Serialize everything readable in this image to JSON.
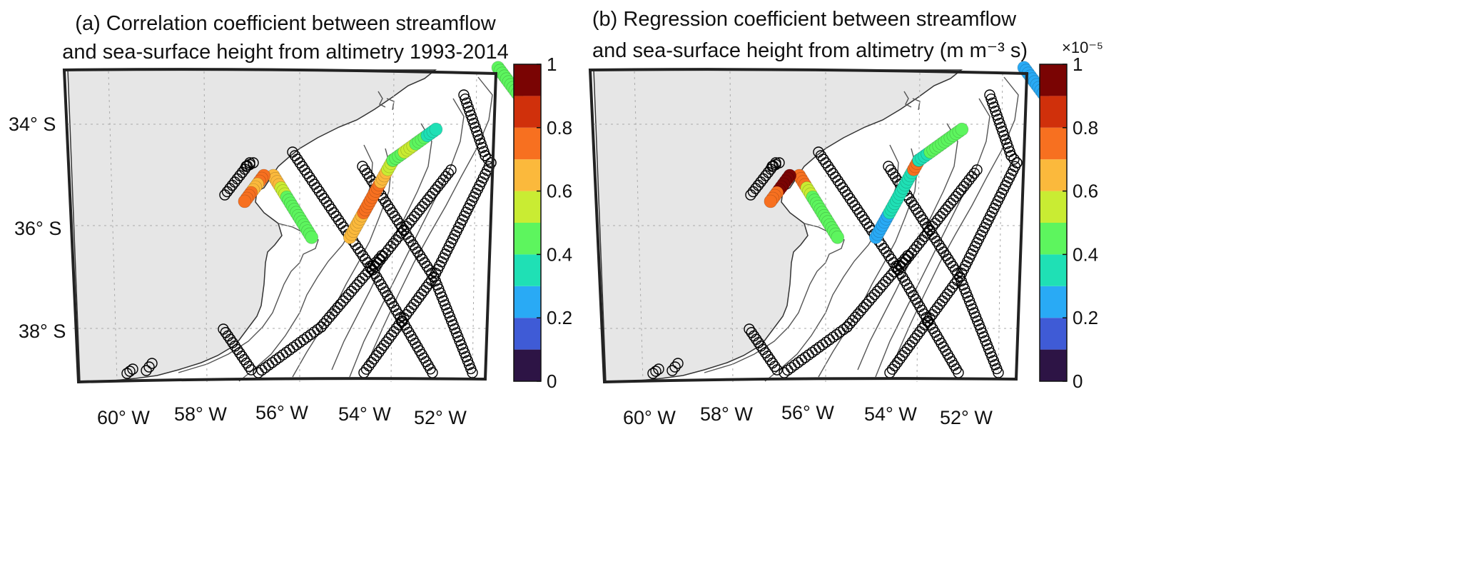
{
  "panels": [
    {
      "title_line1": "(a) Correlation coefficient between streamflow",
      "title_line2": "and sea-surface height from altimetry 1993-2014",
      "colorbar_ticks": [
        "0",
        "0.2",
        "0.4",
        "0.6",
        "0.8",
        "1"
      ],
      "colorbar_exponent": "",
      "lat_labels": [
        "34° S",
        "36° S",
        "38° S"
      ],
      "lon_labels": [
        "60° W",
        "58° W",
        "56° W",
        "54° W",
        "52° W"
      ]
    },
    {
      "title_line1": "(b) Regression coefficient between streamflow",
      "title_line2": "and sea-surface height from altimetry (m m⁻³ s)",
      "colorbar_ticks": [
        "0",
        "0.2",
        "0.4",
        "0.6",
        "0.8",
        "1"
      ],
      "colorbar_exponent": "×10⁻⁵",
      "lat_labels": [],
      "lon_labels": [
        "60° W",
        "58° W",
        "56° W",
        "54° W",
        "52° W"
      ]
    }
  ],
  "colormap": [
    "#2d1445",
    "#3f5bd6",
    "#29aaf5",
    "#1fe0b5",
    "#5df55e",
    "#c9ec33",
    "#fbb93c",
    "#f77020",
    "#d0300b",
    "#7a0403"
  ],
  "chart_data": [
    {
      "type": "map-scatter",
      "title": "(a) Correlation coefficient between streamflow and sea-surface height from altimetry 1993-2014",
      "lon_range": [
        -61,
        -51
      ],
      "lat_range": [
        -39,
        -33
      ],
      "clim": [
        0,
        1
      ],
      "tracks": [
        {
          "name": "track-56.8-diag",
          "lonlat": [
            [
              -56.7,
              -35.0
            ],
            [
              -55.9,
              -36.2
            ]
          ],
          "values": [
            0.62,
            0.52,
            0.48,
            0.45,
            0.45,
            0.44
          ]
        },
        {
          "name": "track-57.2-coast",
          "lonlat": [
            [
              -56.9,
              -35.0
            ],
            [
              -57.3,
              -35.5
            ]
          ],
          "values": [
            0.7,
            0.68,
            0.72
          ]
        },
        {
          "name": "track-54.4",
          "lonlat": [
            [
              -55.1,
              -36.2
            ],
            [
              -54.2,
              -34.7
            ]
          ],
          "values": [
            0.65,
            0.68,
            0.7,
            0.74,
            0.72,
            0.66,
            0.5
          ]
        },
        {
          "name": "track-53.4",
          "lonlat": [
            [
              -54.2,
              -34.7
            ],
            [
              -53.3,
              -34.1
            ]
          ],
          "values": [
            0.45,
            0.5,
            0.42,
            0.3
          ]
        },
        {
          "name": "track-52",
          "lonlat": [
            [
              -52.0,
              -32.9
            ],
            [
              -51.6,
              -33.4
            ]
          ],
          "values": [
            0.45,
            0.42
          ]
        }
      ]
    },
    {
      "type": "map-scatter",
      "title": "(b) Regression coefficient between streamflow and sea-surface height from altimetry (m m-3 s)",
      "lon_range": [
        -61,
        -51
      ],
      "lat_range": [
        -39,
        -33
      ],
      "clim": [
        0,
        1
      ],
      "scale": "1e-5",
      "tracks": [
        {
          "name": "track-56.8-diag",
          "lonlat": [
            [
              -56.7,
              -35.0
            ],
            [
              -55.9,
              -36.2
            ]
          ],
          "values": [
            0.75,
            0.55,
            0.46,
            0.45,
            0.44,
            0.44
          ]
        },
        {
          "name": "track-57.2-coast",
          "lonlat": [
            [
              -56.9,
              -35.0
            ],
            [
              -57.3,
              -35.5
            ]
          ],
          "values": [
            0.95,
            0.9,
            0.78
          ]
        },
        {
          "name": "track-54.4",
          "lonlat": [
            [
              -55.1,
              -36.2
            ],
            [
              -54.2,
              -34.7
            ]
          ],
          "values": [
            0.24,
            0.28,
            0.32,
            0.35,
            0.33,
            0.35,
            0.7
          ]
        },
        {
          "name": "track-53.4",
          "lonlat": [
            [
              -54.2,
              -34.7
            ],
            [
              -53.3,
              -34.1
            ]
          ],
          "values": [
            0.36,
            0.4,
            0.42,
            0.45
          ]
        },
        {
          "name": "track-52",
          "lonlat": [
            [
              -52.0,
              -32.9
            ],
            [
              -51.6,
              -33.4
            ]
          ],
          "values": [
            0.22,
            0.24
          ]
        }
      ]
    }
  ]
}
